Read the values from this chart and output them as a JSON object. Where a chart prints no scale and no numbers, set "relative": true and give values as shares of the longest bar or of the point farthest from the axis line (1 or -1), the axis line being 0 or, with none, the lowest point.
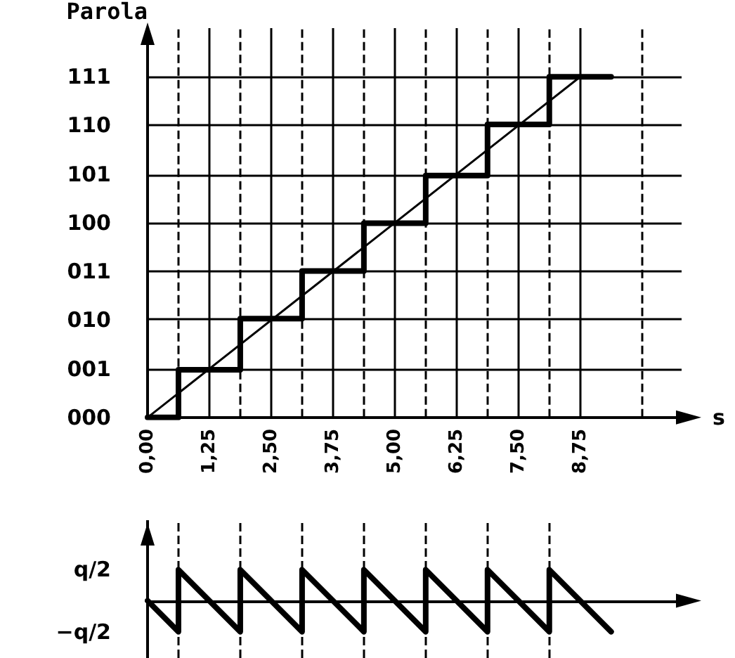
{
  "chart_data": [
    {
      "type": "step",
      "xlabel": "s",
      "ylabel": "Parola",
      "xlim": [
        0,
        10.8
      ],
      "relative": true,
      "annotations": [
        "111",
        "110",
        "101",
        "100",
        "011",
        "010",
        "001",
        "000"
      ],
      "xticks": [
        {
          "value": 0,
          "label": "0,00"
        },
        {
          "value": 1.25,
          "label": "1,25"
        },
        {
          "value": 2.5,
          "label": "2,50"
        },
        {
          "value": 3.75,
          "label": "3,75"
        },
        {
          "value": 5,
          "label": "5,00"
        },
        {
          "value": 6.25,
          "label": "6,25"
        },
        {
          "value": 7.5,
          "label": "7,50"
        },
        {
          "value": 8.75,
          "label": "8,75"
        }
      ],
      "grid": true,
      "marker": "none",
      "line_style": "solid",
      "ref_lines": [
        {
          "axis": "x",
          "value": 0.625,
          "line_style": "dashed"
        },
        {
          "axis": "x",
          "value": 1.875,
          "line_style": "dashed"
        },
        {
          "axis": "x",
          "value": 3.125,
          "line_style": "dashed"
        },
        {
          "axis": "x",
          "value": 4.375,
          "line_style": "dashed"
        },
        {
          "axis": "x",
          "value": 5.625,
          "line_style": "dashed"
        },
        {
          "axis": "x",
          "value": 6.875,
          "line_style": "dashed"
        },
        {
          "axis": "x",
          "value": 8.125,
          "line_style": "dashed"
        },
        {
          "axis": "x",
          "value": 10,
          "line_style": "dashed"
        }
      ],
      "series": [
        {
          "type": "step",
          "color": "#000000",
          "x": [
            0,
            0.625,
            1.875,
            3.125,
            4.375,
            5.625,
            6.875,
            8.125,
            9.375
          ],
          "values": [
            0,
            0.14,
            0.29,
            0.43,
            0.57,
            0.71,
            0.86,
            1,
            1
          ]
        },
        {
          "type": "line",
          "color": "#000000",
          "x": [
            0,
            8.75
          ],
          "values": [
            0,
            1
          ]
        }
      ]
    },
    {
      "type": "line",
      "xlim": [
        0,
        10.8
      ],
      "relative": true,
      "marker": "none",
      "line_style": "solid",
      "annotations": [
        "q/2",
        "−q/2"
      ],
      "ref_lines": [
        {
          "axis": "x",
          "value": 0.625,
          "line_style": "dashed"
        },
        {
          "axis": "x",
          "value": 1.875,
          "line_style": "dashed"
        },
        {
          "axis": "x",
          "value": 3.125,
          "line_style": "dashed"
        },
        {
          "axis": "x",
          "value": 4.375,
          "line_style": "dashed"
        },
        {
          "axis": "x",
          "value": 5.625,
          "line_style": "dashed"
        },
        {
          "axis": "x",
          "value": 6.875,
          "line_style": "dashed"
        },
        {
          "axis": "x",
          "value": 8.125,
          "line_style": "dashed"
        }
      ],
      "series": [
        {
          "color": "#000000",
          "x": [
            0,
            0.625,
            0.625,
            1.875,
            1.875,
            3.125,
            3.125,
            4.375,
            4.375,
            5.625,
            5.625,
            6.875,
            6.875,
            8.125,
            8.125,
            9.375
          ],
          "values": [
            0,
            -1,
            1,
            -1,
            1,
            -1,
            1,
            -1,
            1,
            -1,
            1,
            -1,
            1,
            -1,
            1,
            -1
          ]
        }
      ]
    }
  ]
}
